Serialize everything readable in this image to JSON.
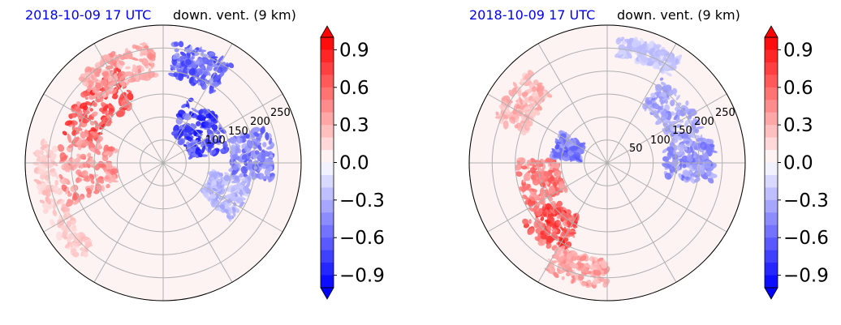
{
  "chart_data": [
    {
      "type": "heatmap",
      "projection": "polar",
      "title_left": "2018-10-09 17 UTC",
      "title_right": "down. vent. (9 km)",
      "radial_tick_labels": [
        "100",
        "150",
        "200",
        "250"
      ],
      "colorbar": {
        "ticks": [
          "0.9",
          "0.6",
          "0.3",
          "0.0",
          "−0.3",
          "−0.6",
          "−0.9"
        ],
        "range": [
          -1.0,
          1.0
        ],
        "extend": "both",
        "cmap": "bwr"
      },
      "grid": true,
      "regions": [
        {
          "r": 0.62,
          "theta": 140,
          "dr": 0.3,
          "dtheta": 50,
          "value": 0.9
        },
        {
          "r": 0.55,
          "theta": 185,
          "dr": 0.4,
          "dtheta": 40,
          "value": 0.6
        },
        {
          "r": 0.75,
          "theta": 115,
          "dr": 0.25,
          "dtheta": 40,
          "value": 0.5
        },
        {
          "r": 0.85,
          "theta": 200,
          "dr": 0.15,
          "dtheta": 60,
          "value": 0.3
        },
        {
          "r": 0.35,
          "theta": 40,
          "dr": 0.3,
          "dtheta": 60,
          "value": -0.95
        },
        {
          "r": 0.75,
          "theta": 70,
          "dr": 0.25,
          "dtheta": 30,
          "value": -0.8
        },
        {
          "r": 0.65,
          "theta": 5,
          "dr": 0.3,
          "dtheta": 30,
          "value": -0.7
        },
        {
          "r": 0.5,
          "theta": 335,
          "dr": 0.3,
          "dtheta": 30,
          "value": -0.4
        }
      ]
    },
    {
      "type": "heatmap",
      "projection": "polar",
      "title_left": "2018-10-09 17 UTC",
      "title_right": "down. vent. (9 km)",
      "radial_tick_labels": [
        "50",
        "100",
        "150",
        "200",
        "250"
      ],
      "colorbar": {
        "ticks": [
          "0.9",
          "0.6",
          "0.3",
          "0.0",
          "−0.3",
          "−0.6",
          "−0.9"
        ],
        "range": [
          -1.0,
          1.0
        ],
        "extend": "both",
        "cmap": "bwr"
      },
      "grid": true,
      "regions": [
        {
          "r": 0.6,
          "theta": 230,
          "dr": 0.3,
          "dtheta": 30,
          "value": 0.9
        },
        {
          "r": 0.5,
          "theta": 195,
          "dr": 0.3,
          "dtheta": 35,
          "value": 0.7
        },
        {
          "r": 0.8,
          "theta": 255,
          "dr": 0.2,
          "dtheta": 30,
          "value": 0.5
        },
        {
          "r": 0.75,
          "theta": 145,
          "dr": 0.25,
          "dtheta": 30,
          "value": 0.4
        },
        {
          "r": 0.6,
          "theta": 35,
          "dr": 0.25,
          "dtheta": 45,
          "value": -0.5
        },
        {
          "r": 0.3,
          "theta": 160,
          "dr": 0.2,
          "dtheta": 30,
          "value": -0.7
        },
        {
          "r": 0.6,
          "theta": 0,
          "dr": 0.35,
          "dtheta": 25,
          "value": -0.6
        },
        {
          "r": 0.85,
          "theta": 70,
          "dr": 0.15,
          "dtheta": 30,
          "value": -0.3
        }
      ]
    }
  ]
}
